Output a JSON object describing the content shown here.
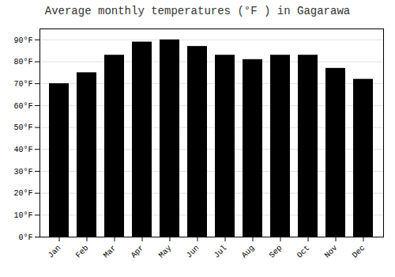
{
  "chart_data": {
    "type": "bar",
    "title": "Average monthly temperatures (°F ) in Gagarawa",
    "categories": [
      "Jan",
      "Feb",
      "Mar",
      "Apr",
      "May",
      "Jun",
      "Jul",
      "Aug",
      "Sep",
      "Oct",
      "Nov",
      "Dec"
    ],
    "values": [
      70,
      75,
      83,
      89,
      90,
      87,
      83,
      81,
      83,
      83,
      77,
      72
    ],
    "ylim": [
      0,
      95
    ],
    "yticks": [
      {
        "value": 0,
        "label": "0°F"
      },
      {
        "value": 10,
        "label": "10°F"
      },
      {
        "value": 20,
        "label": "20°F"
      },
      {
        "value": 30,
        "label": "30°F"
      },
      {
        "value": 40,
        "label": "40°F"
      },
      {
        "value": 50,
        "label": "50°F"
      },
      {
        "value": 60,
        "label": "60°F"
      },
      {
        "value": 70,
        "label": "70°F"
      },
      {
        "value": 80,
        "label": "80°F"
      },
      {
        "value": 90,
        "label": "90°F"
      }
    ],
    "grid": true
  }
}
